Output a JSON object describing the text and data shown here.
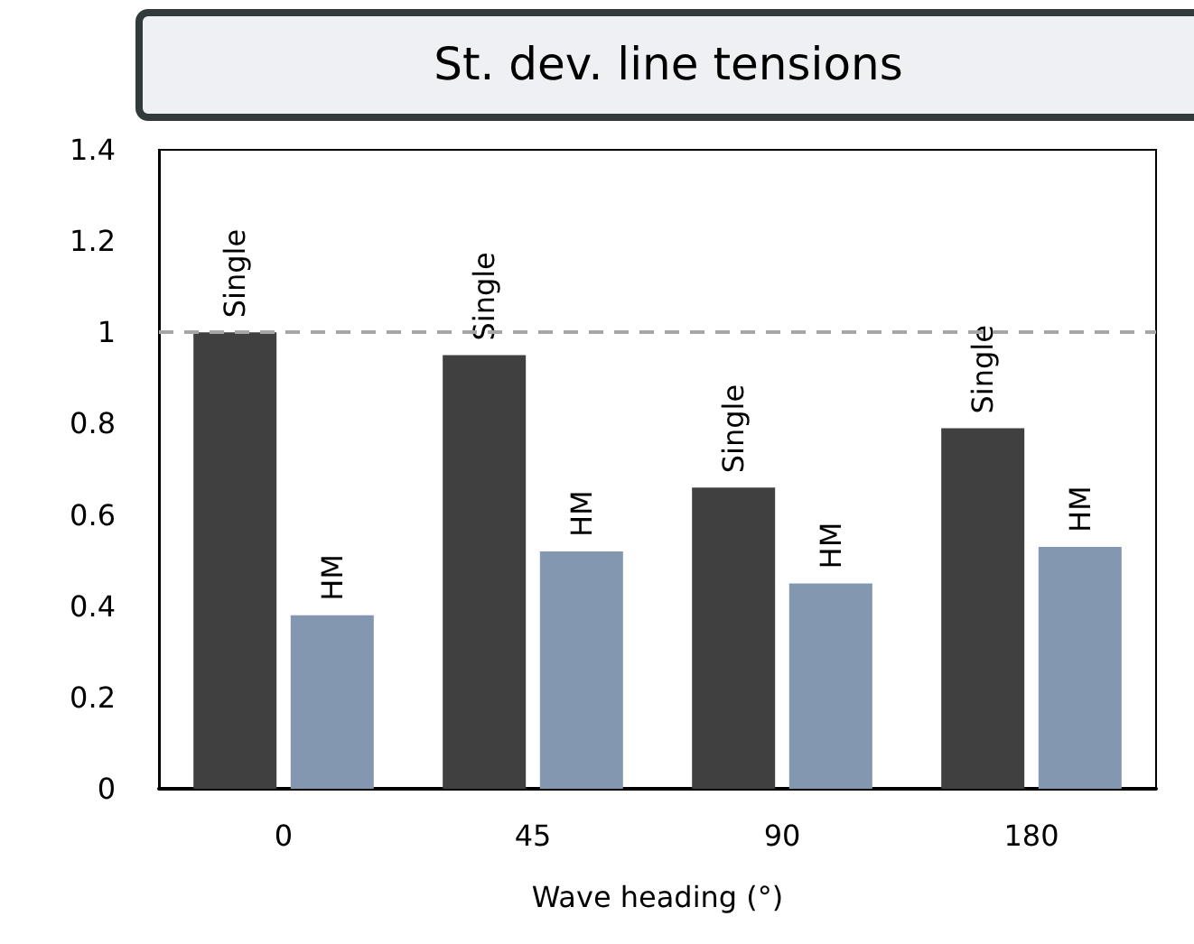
{
  "chart_data": {
    "type": "bar",
    "title": "St. dev. line tensions",
    "xlabel": "Wave heading (°)",
    "categories": [
      "0",
      "45",
      "90",
      "180"
    ],
    "series": [
      {
        "name": "Single",
        "color": "#404040",
        "values": [
          1.0,
          0.95,
          0.66,
          0.79
        ]
      },
      {
        "name": "HM",
        "color": "#8497b0",
        "values": [
          0.38,
          0.52,
          0.45,
          0.53
        ]
      }
    ],
    "ylim": [
      0,
      1.4
    ],
    "yticks": [
      0,
      0.2,
      0.4,
      0.6,
      0.8,
      1,
      1.2,
      1.4
    ],
    "ref_lines": [
      {
        "axis": "y",
        "value": 1,
        "color": "#a6a6a6",
        "line_style": "dashed"
      }
    ],
    "grid": false,
    "legend": false
  }
}
